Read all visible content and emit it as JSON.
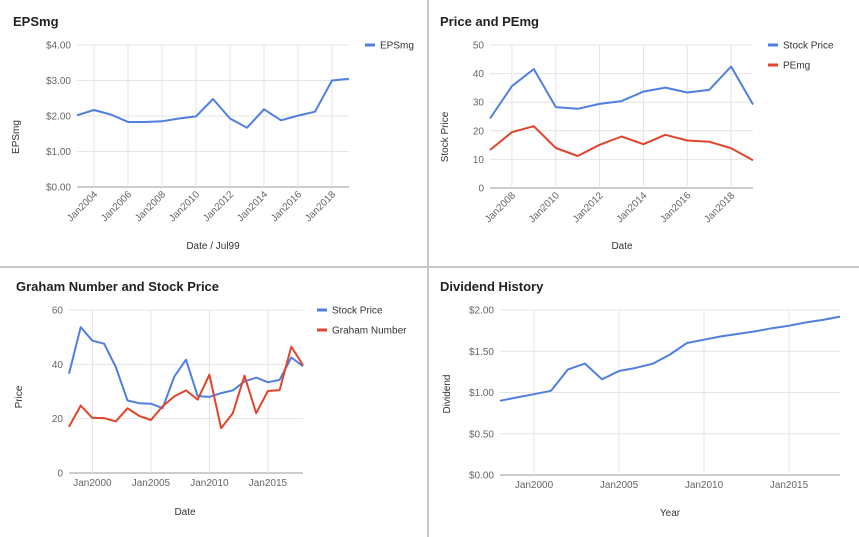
{
  "colors": {
    "blue": "#4f7fe0",
    "red": "#e0452b",
    "grid": "#e4e4e4",
    "axis": "#999999",
    "border": "#c8c8c8"
  },
  "chart_data": [
    {
      "id": "eps",
      "type": "line",
      "title": "EPSmg",
      "xlabel": "Date / Jul99",
      "ylabel": "EPSmg",
      "x": [
        2003,
        2004,
        2005,
        2006,
        2007,
        2008,
        2009,
        2010,
        2011,
        2012,
        2013,
        2014,
        2015,
        2016,
        2017,
        2018,
        2019
      ],
      "xlim": [
        2003,
        2019
      ],
      "ylim": [
        0,
        4
      ],
      "yticks": [
        0,
        1,
        2,
        3,
        4
      ],
      "ytick_labels": [
        "$0.00",
        "$1.00",
        "$2.00",
        "$3.00",
        "$4.00"
      ],
      "xticks": [
        2004,
        2006,
        2008,
        2010,
        2012,
        2014,
        2016,
        2018
      ],
      "xtick_labels": [
        "Jan2004",
        "Jan2006",
        "Jan2008",
        "Jan2010",
        "Jan2012",
        "Jan2014",
        "Jan2016",
        "Jan2018"
      ],
      "grid": true,
      "legend_position": "right",
      "series": [
        {
          "name": "EPSmg",
          "color": "#4f7fe0",
          "values": [
            2.02,
            2.17,
            2.04,
            1.83,
            1.83,
            1.85,
            1.93,
            1.99,
            2.48,
            1.93,
            1.67,
            2.19,
            1.88,
            2.01,
            2.12,
            3.0,
            3.05
          ]
        }
      ]
    },
    {
      "id": "pe",
      "type": "line",
      "title": "Price and PEmg",
      "xlabel": "Date",
      "ylabel": "Stock Price",
      "x": [
        2007,
        2008,
        2009,
        2010,
        2011,
        2012,
        2013,
        2014,
        2015,
        2016,
        2017,
        2018,
        2019
      ],
      "xlim": [
        2007,
        2019
      ],
      "ylim": [
        0,
        50
      ],
      "yticks": [
        0,
        10,
        20,
        30,
        40,
        50
      ],
      "ytick_labels": [
        "0",
        "10",
        "20",
        "30",
        "40",
        "50"
      ],
      "xticks": [
        2008,
        2010,
        2012,
        2014,
        2016,
        2018
      ],
      "xtick_labels": [
        "Jan2008",
        "Jan2010",
        "Jan2012",
        "Jan2014",
        "Jan2016",
        "Jan2018"
      ],
      "grid": true,
      "legend_position": "right",
      "series": [
        {
          "name": "Stock Price",
          "color": "#4f7fe0",
          "values": [
            24.3,
            35.6,
            41.6,
            28.3,
            27.7,
            29.4,
            30.4,
            33.7,
            35.1,
            33.4,
            34.3,
            42.5,
            29.2
          ]
        },
        {
          "name": "PEmg",
          "color": "#e0452b",
          "values": [
            13.3,
            19.5,
            21.6,
            14.0,
            11.2,
            15.1,
            18.0,
            15.3,
            18.6,
            16.6,
            16.2,
            13.9,
            9.7
          ]
        }
      ]
    },
    {
      "id": "graham",
      "type": "line",
      "title": "Graham Number and Stock Price",
      "xlabel": "Date",
      "ylabel": "Price",
      "x": [
        1998,
        1999,
        2000,
        2001,
        2002,
        2003,
        2004,
        2005,
        2006,
        2007,
        2008,
        2009,
        2010,
        2011,
        2012,
        2013,
        2014,
        2015,
        2016,
        2017,
        2018
      ],
      "xlim": [
        1998,
        2018
      ],
      "ylim": [
        0,
        60
      ],
      "yticks": [
        0,
        20,
        40,
        60
      ],
      "ytick_labels": [
        "0",
        "20",
        "40",
        "60"
      ],
      "xticks": [
        2000,
        2005,
        2010,
        2015
      ],
      "xtick_labels": [
        "Jan2000",
        "Jan2005",
        "Jan2010",
        "Jan2015"
      ],
      "grid": true,
      "legend_position": "right",
      "series": [
        {
          "name": "Stock Price",
          "color": "#4f7fe0",
          "values": [
            36.5,
            53.7,
            48.7,
            47.6,
            39.0,
            26.7,
            25.7,
            25.5,
            23.9,
            35.5,
            41.7,
            28.3,
            28.0,
            29.4,
            30.4,
            33.7,
            35.1,
            33.4,
            34.3,
            42.5,
            39.3
          ]
        },
        {
          "name": "Graham Number",
          "color": "#e0452b",
          "values": [
            17.0,
            24.8,
            20.3,
            20.2,
            19.0,
            23.8,
            21.0,
            19.5,
            24.5,
            28.2,
            30.4,
            27.0,
            36.2,
            16.5,
            22.0,
            35.8,
            22.0,
            30.2,
            30.5,
            46.5,
            39.7
          ]
        }
      ]
    },
    {
      "id": "dividend",
      "type": "line",
      "title": "Dividend History",
      "xlabel": "Year",
      "ylabel": "Dividend",
      "x": [
        1998,
        1999,
        2000,
        2001,
        2002,
        2003,
        2004,
        2005,
        2006,
        2007,
        2008,
        2009,
        2010,
        2011,
        2012,
        2013,
        2014,
        2015,
        2016,
        2017,
        2018
      ],
      "xlim": [
        1998,
        2018
      ],
      "ylim": [
        0,
        2
      ],
      "yticks": [
        0,
        0.5,
        1,
        1.5,
        2
      ],
      "ytick_labels": [
        "$0.00",
        "$0.50",
        "$1.00",
        "$1.50",
        "$2.00"
      ],
      "xticks": [
        2000,
        2005,
        2010,
        2015
      ],
      "xtick_labels": [
        "Jan2000",
        "Jan2005",
        "Jan2010",
        "Jan2015"
      ],
      "grid": true,
      "legend_position": "none",
      "series": [
        {
          "name": "",
          "color": "#4f7fe0",
          "values": [
            0.9,
            0.94,
            0.98,
            1.02,
            1.28,
            1.35,
            1.16,
            1.26,
            1.3,
            1.35,
            1.46,
            1.6,
            1.64,
            1.68,
            1.71,
            1.74,
            1.78,
            1.81,
            1.85,
            1.88,
            1.92
          ]
        }
      ]
    }
  ]
}
